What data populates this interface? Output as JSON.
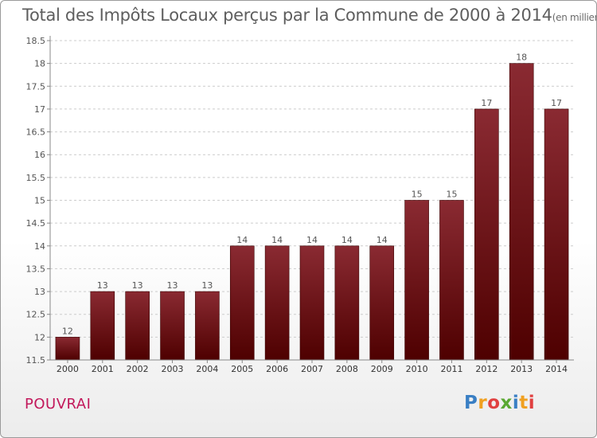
{
  "header": {
    "title": "Total des Impôts Locaux perçus par la Commune de 2000 à 2014",
    "unit": "(en milliers d'€)"
  },
  "footer": {
    "commune": "POUVRAI",
    "logo": {
      "letters": [
        "P",
        "r",
        "o",
        "x",
        "i",
        "t",
        "i"
      ],
      "colors": [
        "#3a7fc4",
        "#f0a020",
        "#e04040",
        "#5aa832",
        "#3a7fc4",
        "#f0a020",
        "#e04040"
      ]
    }
  },
  "colors": {
    "bar_top": "#8a2a32",
    "bar_bottom": "#4e0000",
    "axis_text": "#555555",
    "grid": "#cccccc"
  },
  "chart_data": {
    "type": "bar",
    "categories": [
      "2000",
      "2001",
      "2002",
      "2003",
      "2004",
      "2005",
      "2006",
      "2007",
      "2008",
      "2009",
      "2010",
      "2011",
      "2012",
      "2013",
      "2014"
    ],
    "values": [
      12,
      13,
      13,
      13,
      13,
      14,
      14,
      14,
      14,
      14,
      15,
      15,
      17,
      18,
      17
    ],
    "labels": [
      "12",
      "13",
      "13",
      "13",
      "13",
      "14",
      "14",
      "14",
      "14",
      "14",
      "15",
      "15",
      "17",
      "18",
      "17"
    ],
    "ylim": [
      11.5,
      18.5
    ],
    "yticks": [
      "11.5",
      "12",
      "12.5",
      "13",
      "13.5",
      "14",
      "14.5",
      "15",
      "15.5",
      "16",
      "16.5",
      "17",
      "17.5",
      "18",
      "18.5"
    ],
    "grid": true,
    "grid_axis": "y",
    "legend": "none"
  }
}
